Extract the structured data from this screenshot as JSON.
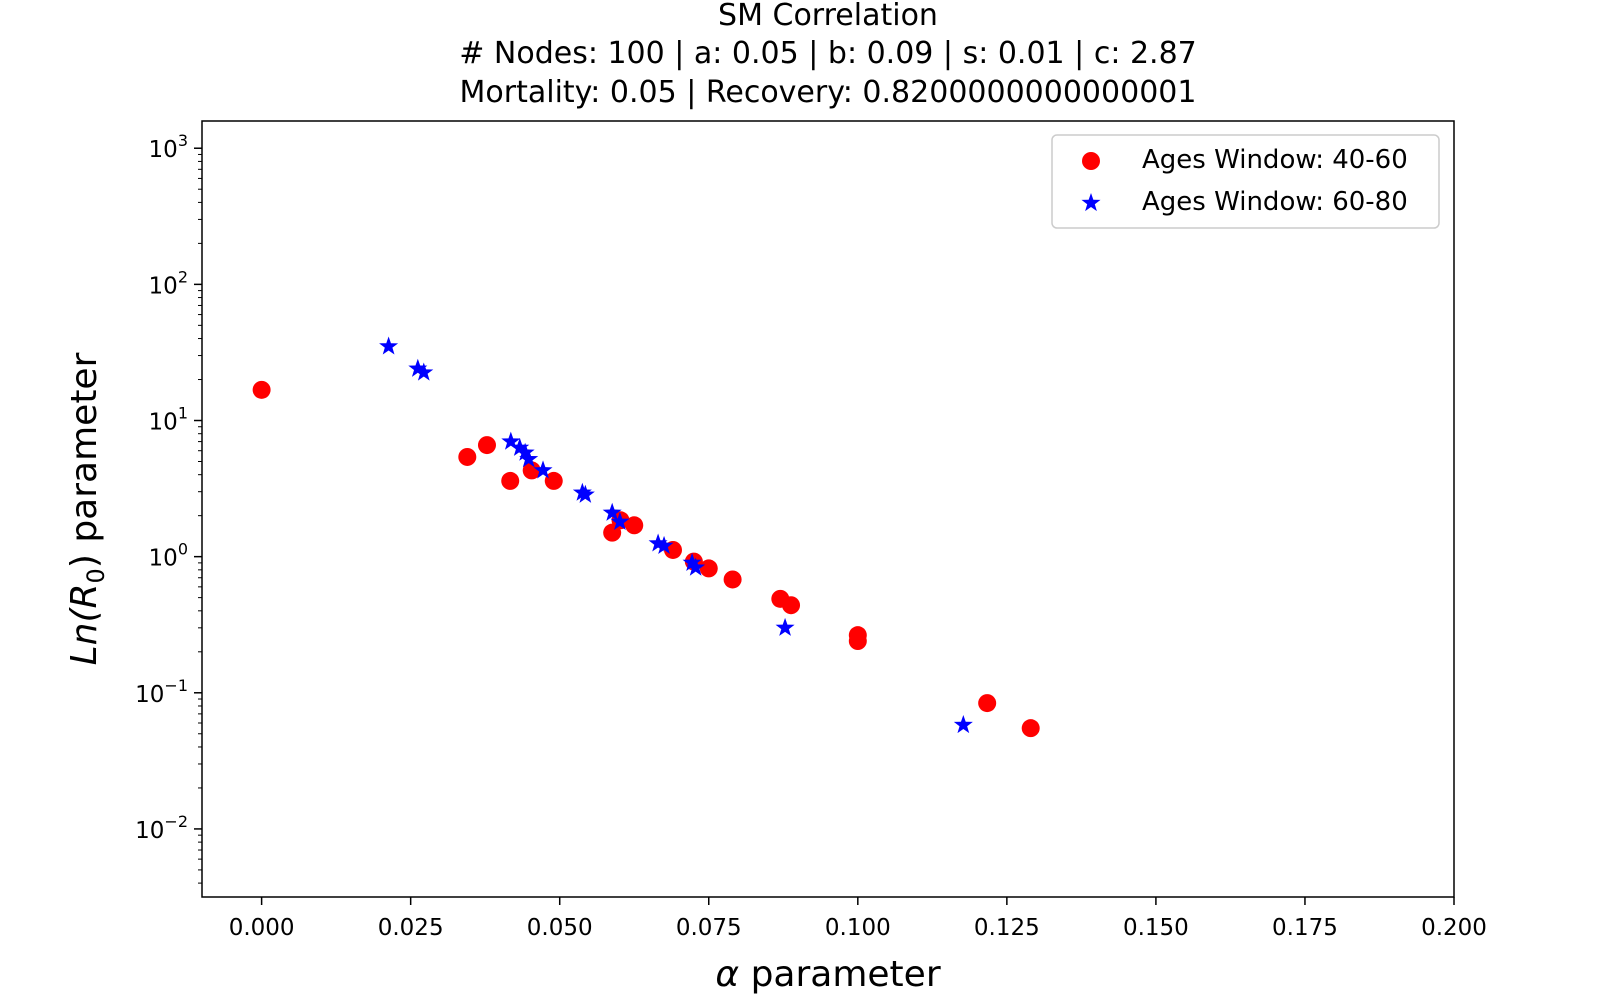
{
  "chart_data": {
    "type": "scatter",
    "title_lines": [
      "SM Correlation",
      "# Nodes: 100 | a: 0.05 | b: 0.09 | s: 0.01 | c: 2.87",
      "Mortality: 0.05 | Recovery: 0.8200000000000001"
    ],
    "xlabel_symbol": "α",
    "xlabel_text": "parameter",
    "ylabel": {
      "prefix": "Ln(R",
      "subscript": "0",
      "suffix": ") parameter"
    },
    "xlim": [
      -0.01,
      0.2
    ],
    "ylim_log10": [
      -2.5,
      3.2
    ],
    "yscale": "log",
    "x_ticks": [
      {
        "value": 0.0,
        "label": "0.000"
      },
      {
        "value": 0.025,
        "label": "0.025"
      },
      {
        "value": 0.05,
        "label": "0.050"
      },
      {
        "value": 0.075,
        "label": "0.075"
      },
      {
        "value": 0.1,
        "label": "0.100"
      },
      {
        "value": 0.125,
        "label": "0.125"
      },
      {
        "value": 0.15,
        "label": "0.150"
      },
      {
        "value": 0.175,
        "label": "0.175"
      },
      {
        "value": 0.2,
        "label": "0.200"
      }
    ],
    "y_ticks": [
      {
        "exp": -2,
        "base": "10",
        "sup": "−2"
      },
      {
        "exp": -1,
        "base": "10",
        "sup": "−1"
      },
      {
        "exp": 0,
        "base": "10",
        "sup": "0"
      },
      {
        "exp": 1,
        "base": "10",
        "sup": "1"
      },
      {
        "exp": 2,
        "base": "10",
        "sup": "2"
      },
      {
        "exp": 3,
        "base": "10",
        "sup": "3"
      }
    ],
    "legend_position": "top-right",
    "series": [
      {
        "name": "Ages Window: 40-60",
        "marker": "circle",
        "color": "#ff0000",
        "points": [
          {
            "x": 0.0,
            "y": 16.8
          },
          {
            "x": 0.0345,
            "y": 5.4
          },
          {
            "x": 0.0378,
            "y": 6.6
          },
          {
            "x": 0.0417,
            "y": 3.6
          },
          {
            "x": 0.0453,
            "y": 4.3
          },
          {
            "x": 0.049,
            "y": 3.6
          },
          {
            "x": 0.0588,
            "y": 1.5
          },
          {
            "x": 0.0602,
            "y": 1.85
          },
          {
            "x": 0.0625,
            "y": 1.7
          },
          {
            "x": 0.069,
            "y": 1.12
          },
          {
            "x": 0.0725,
            "y": 0.92
          },
          {
            "x": 0.075,
            "y": 0.82
          },
          {
            "x": 0.079,
            "y": 0.68
          },
          {
            "x": 0.087,
            "y": 0.49
          },
          {
            "x": 0.0888,
            "y": 0.44
          },
          {
            "x": 0.1,
            "y": 0.265
          },
          {
            "x": 0.1,
            "y": 0.24
          },
          {
            "x": 0.1217,
            "y": 0.084
          },
          {
            "x": 0.129,
            "y": 0.055
          }
        ]
      },
      {
        "name": "Ages Window: 60-80",
        "marker": "star",
        "color": "#0000ff",
        "points": [
          {
            "x": 0.0213,
            "y": 35.0
          },
          {
            "x": 0.0262,
            "y": 24.0
          },
          {
            "x": 0.0272,
            "y": 22.5
          },
          {
            "x": 0.0418,
            "y": 7.0
          },
          {
            "x": 0.0433,
            "y": 6.3
          },
          {
            "x": 0.0442,
            "y": 5.8
          },
          {
            "x": 0.0448,
            "y": 5.2
          },
          {
            "x": 0.0472,
            "y": 4.3
          },
          {
            "x": 0.0538,
            "y": 2.95
          },
          {
            "x": 0.0543,
            "y": 2.85
          },
          {
            "x": 0.0588,
            "y": 2.1
          },
          {
            "x": 0.0601,
            "y": 1.8
          },
          {
            "x": 0.0665,
            "y": 1.25
          },
          {
            "x": 0.0675,
            "y": 1.2
          },
          {
            "x": 0.0722,
            "y": 0.9
          },
          {
            "x": 0.0728,
            "y": 0.83
          },
          {
            "x": 0.0878,
            "y": 0.3
          },
          {
            "x": 0.1177,
            "y": 0.058
          }
        ]
      }
    ]
  }
}
